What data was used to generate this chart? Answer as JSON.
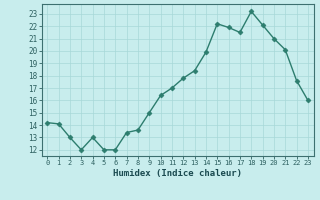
{
  "x": [
    0,
    1,
    2,
    3,
    4,
    5,
    6,
    7,
    8,
    9,
    10,
    11,
    12,
    13,
    14,
    15,
    16,
    17,
    18,
    19,
    20,
    21,
    22,
    23
  ],
  "y": [
    14.2,
    14.1,
    13.0,
    12.0,
    13.0,
    12.0,
    12.0,
    13.4,
    13.6,
    15.0,
    16.4,
    17.0,
    17.8,
    18.4,
    19.9,
    22.2,
    21.9,
    21.5,
    23.2,
    22.1,
    21.0,
    20.1,
    17.6,
    16.0
  ],
  "line_color": "#2d7d6e",
  "marker": "D",
  "markersize": 2.5,
  "linewidth": 1.0,
  "bg_color": "#c8eded",
  "grid_color": "#a8d8d8",
  "ylabel_ticks": [
    12,
    13,
    14,
    15,
    16,
    17,
    18,
    19,
    20,
    21,
    22,
    23
  ],
  "xlabel": "Humidex (Indice chaleur)",
  "ylim": [
    11.5,
    23.8
  ],
  "xlim": [
    -0.5,
    23.5
  ],
  "tick_color": "#2d6060",
  "label_color": "#1a4a50",
  "spine_color": "#3d7070"
}
